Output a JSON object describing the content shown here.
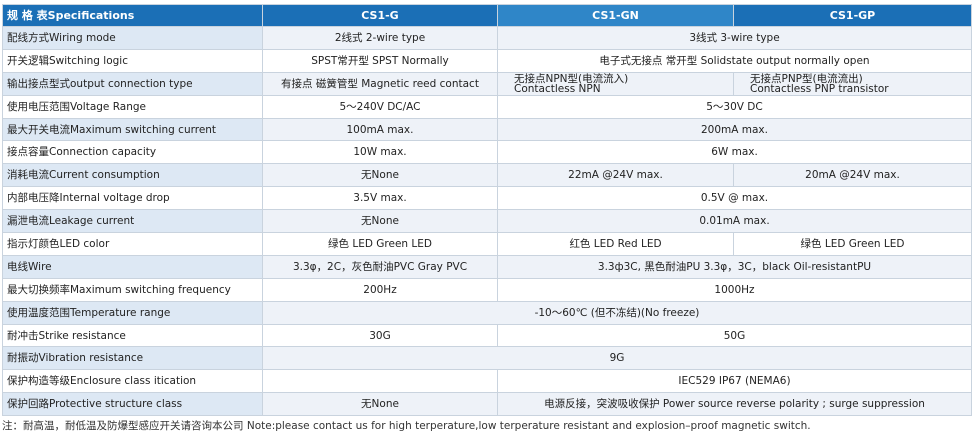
{
  "header": [
    "规 格 表Specifications",
    "CS1-G",
    "CS1-GN",
    "CS1-GP"
  ],
  "rows": [
    {
      "label": "配线方式Wiring mode",
      "cells": [
        "2线式 2-wire type",
        "3线式 3-wire type"
      ]
    },
    {
      "label": "开关逻辑Switching logic",
      "cells": [
        "SPST常开型 SPST Normally",
        "电子式无接点 常开型 Solidstate output normally open"
      ]
    },
    {
      "label": "输出接点型式output connection type",
      "cells": [
        "有接点 磁簧管型 Magnetic reed contact",
        "无接点NPN型(电流流入)\nContactless  NPN",
        "无接点PNP型(电流流出)\nContactless PNP transistor"
      ]
    },
    {
      "label": "使用电压范围Voltage Range",
      "cells": [
        "5～240V DC/AC",
        "5～30V DC"
      ]
    },
    {
      "label": "最大开关电流Maximum switching current",
      "cells": [
        "100mA max.",
        "200mA max."
      ]
    },
    {
      "label": "接点容量Connection capacity",
      "cells": [
        "10W max.",
        "6W max."
      ]
    },
    {
      "label": "消耗电流Current consumption",
      "cells": [
        "无None",
        "22mA @24V max.",
        "20mA @24V max."
      ]
    },
    {
      "label": "内部电压降Internal voltage drop",
      "cells": [
        "3.5V max.",
        "0.5V @ max."
      ]
    },
    {
      "label": "漏泄电流Leakage current",
      "cells": [
        "无None",
        "0.01mA max."
      ]
    },
    {
      "label": "指示灯颜色LED color",
      "cells": [
        "绿色 LED Green LED",
        "红色 LED Red  LED",
        "绿色 LED Green LED"
      ]
    },
    {
      "label": "电线Wire",
      "cells": [
        "3.3φ，2C，灰色耐油PVC  Gray PVC",
        "3.3ф3C, 黑色耐油PU 3.3φ，3C，black Oil-resistantPU"
      ]
    },
    {
      "label": "最大切换频率Maximum switching frequency",
      "cells": [
        "200Hz",
        "1000Hz"
      ]
    },
    {
      "label": "使用温度范围Temperature range",
      "cells": [
        "-10～60℃ (但不冻结)(No freeze)"
      ]
    },
    {
      "label": "耐冲击Strike resistance",
      "cells": [
        "30G",
        "50G"
      ]
    },
    {
      "label": "耐振动Vibration resistance",
      "cells": [
        "9G"
      ]
    },
    {
      "label": "保护构造等级Enclosure class itication",
      "cells": [
        "IEC529 IP67 (NEMA6)"
      ]
    },
    {
      "label": "保护回路Protective structure class",
      "cells": [
        "无None",
        "电源反接，突波吸收保护 Power source reverse polarity ; surge suppression"
      ]
    }
  ],
  "note": "注：耐高温，耐低温及防爆型感应开关请咨询本公司 Note:please contact us for high terperature,low terperature resistant and explosion–proof magnetic switch."
}
